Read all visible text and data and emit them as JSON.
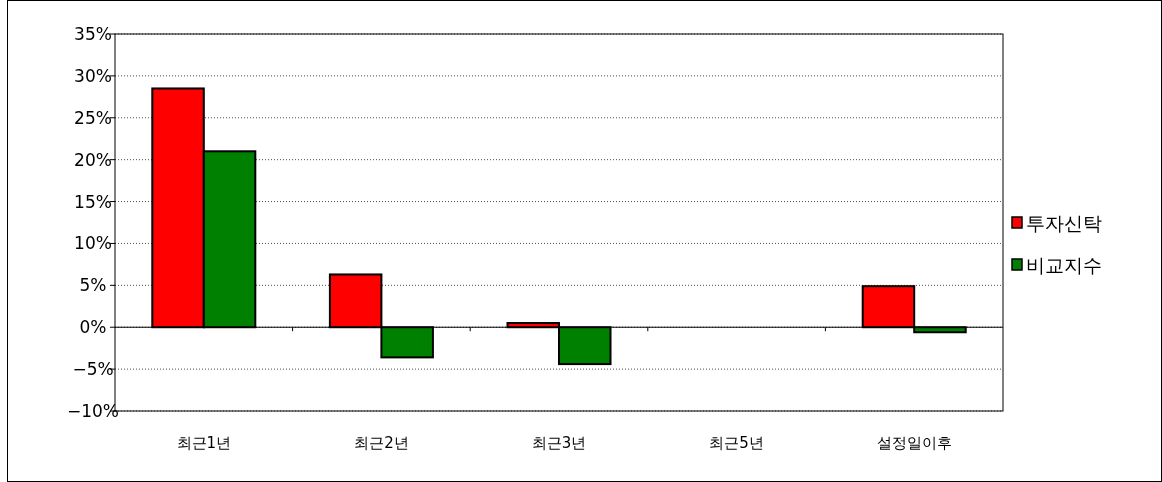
{
  "chart_data": {
    "type": "bar",
    "categories": [
      "최근1년",
      "최근2년",
      "최근3년",
      "최근5년",
      "설정일이후"
    ],
    "series": [
      {
        "name": "투자신탁",
        "color": "#ff0000",
        "values": [
          28.5,
          6.3,
          0.5,
          null,
          4.9
        ]
      },
      {
        "name": "비교지수",
        "color": "#008000",
        "values": [
          21.0,
          -3.6,
          -4.4,
          null,
          -0.6
        ]
      }
    ],
    "ylim": [
      -10,
      35
    ],
    "yticks": [
      {
        "value": -10,
        "label": "−10%"
      },
      {
        "value": -5,
        "label": "−5%"
      },
      {
        "value": 0,
        "label": "0%"
      },
      {
        "value": 5,
        "label": "5%"
      },
      {
        "value": 10,
        "label": "10%"
      },
      {
        "value": 15,
        "label": "15%"
      },
      {
        "value": 20,
        "label": "20%"
      },
      {
        "value": 25,
        "label": "25%"
      },
      {
        "value": 30,
        "label": "30%"
      },
      {
        "value": 35,
        "label": "35%"
      }
    ],
    "grid": "y",
    "legend": "right"
  }
}
